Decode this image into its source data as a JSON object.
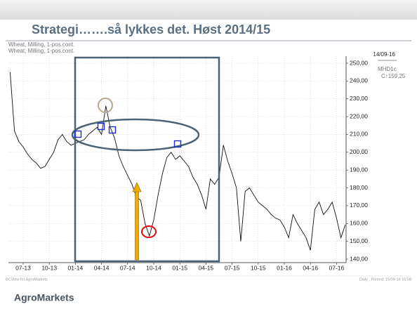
{
  "header": {
    "title": "Strategi…….så lykkes det.  Høst 2014/15"
  },
  "chart_data": {
    "type": "line",
    "series_labels": [
      "Wheat, Milling, 1-pos.cont.",
      "Wheat, Milling, 1-pos.cont."
    ],
    "info": [
      "14/09-16",
      "MHD1c",
      "C↑159,25"
    ],
    "categories": [
      null,
      null,
      null,
      "07-13",
      null,
      null,
      null,
      null,
      null,
      "10-13",
      null,
      null,
      null,
      null,
      null,
      "01-14",
      null,
      null,
      null,
      null,
      null,
      "04-14",
      null,
      null,
      null,
      null,
      null,
      "07-14",
      null,
      null,
      null,
      null,
      null,
      "10-14",
      null,
      null,
      null,
      null,
      null,
      "01-15",
      null,
      null,
      null,
      null,
      null,
      "04-15",
      null,
      null,
      null,
      null,
      null,
      "07-15",
      null,
      null,
      null,
      null,
      null,
      "10-15",
      null,
      null,
      null,
      null,
      null,
      "01-16",
      null,
      null,
      null,
      null,
      null,
      "04-16",
      null,
      null,
      null,
      null,
      null,
      "07-16",
      null,
      null
    ],
    "series": [
      {
        "name": "Wheat, Milling, 1-pos.cont.",
        "color": "#111111",
        "values": [
          245,
          212,
          206,
          203,
          199,
          196,
          194,
          191,
          192,
          196,
          200,
          207,
          210,
          206,
          204,
          205,
          206,
          207,
          210,
          212,
          214,
          210,
          226,
          214,
          208,
          198,
          192,
          187,
          182,
          175,
          173,
          160,
          153,
          162,
          176,
          188,
          197,
          200,
          196,
          198,
          195,
          192,
          186,
          182,
          176,
          168,
          185,
          182,
          186,
          204,
          195,
          188,
          180,
          150,
          178,
          180,
          176,
          172,
          170,
          168,
          165,
          163,
          162,
          158,
          152,
          165,
          160,
          156,
          152,
          145,
          168,
          172,
          165,
          168,
          172,
          163,
          152,
          159.25
        ]
      }
    ],
    "ylim": [
      140,
      250
    ],
    "yticks": [
      {
        "value": 140,
        "label": "140,00"
      },
      {
        "value": 150,
        "label": "150,00"
      },
      {
        "value": 160,
        "label": "160,00"
      },
      {
        "value": 170,
        "label": "170,00"
      },
      {
        "value": 180,
        "label": "180,00"
      },
      {
        "value": 190,
        "label": "190,00"
      },
      {
        "value": 200,
        "label": "200,00"
      },
      {
        "value": 210,
        "label": "210,00"
      },
      {
        "value": 220,
        "label": "220,00"
      },
      {
        "value": 230,
        "label": "230,00"
      },
      {
        "value": 240,
        "label": "240,00"
      },
      {
        "value": 250,
        "label": "250,00"
      }
    ],
    "grid": true,
    "source": "BCView for AgroMarkets",
    "printed": "Daily , Printed: 15/09-16 16:58"
  },
  "footer": {
    "brand": "AgroMarkets"
  }
}
